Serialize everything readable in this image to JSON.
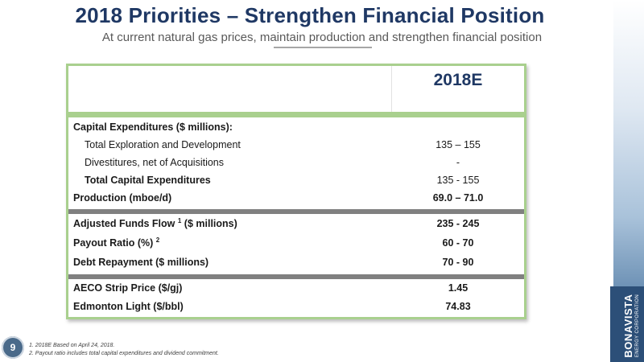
{
  "slide": {
    "title": "2018 Priorities – Strengthen Financial Position",
    "subtitle": "At current natural gas prices, maintain production and strengthen financial position",
    "page_number": "9"
  },
  "table": {
    "column_header": "2018E",
    "rows": [
      {
        "label": "Capital Expenditures ($ millions):",
        "value": ""
      },
      {
        "label": "Total Exploration and Development",
        "value": "135 – 155"
      },
      {
        "label": "Divestitures, net of Acquisitions",
        "value": "-"
      },
      {
        "label": "Total Capital Expenditures",
        "value": "135 - 155"
      },
      {
        "label": "Production (mboe/d)",
        "value": "69.0 – 71.0"
      },
      {
        "label": "Adjusted Funds Flow",
        "sup": "1",
        "label_suffix": " ($ millions)",
        "value": "235 - 245"
      },
      {
        "label": "Payout Ratio (%)",
        "sup": "2",
        "value": "60 - 70"
      },
      {
        "label": "Debt Repayment ($ millions)",
        "value": "70 - 90"
      },
      {
        "label": "AECO Strip Price ($/gj)",
        "value": "1.45"
      },
      {
        "label": "Edmonton Light ($/bbl)",
        "value": "74.83"
      }
    ]
  },
  "footnotes": [
    "1. 2018E Based on April 24, 2018.",
    "2. Payout ratio includes total capital expenditures and dividend commitment."
  ],
  "logo": {
    "name": "BONAVISTA",
    "tagline": "ENERGY CORPORATION"
  },
  "colors": {
    "title": "#1f3864",
    "table_border": "#a9d08e",
    "separator": "#808080",
    "logo_bg": "#2c4f78"
  }
}
